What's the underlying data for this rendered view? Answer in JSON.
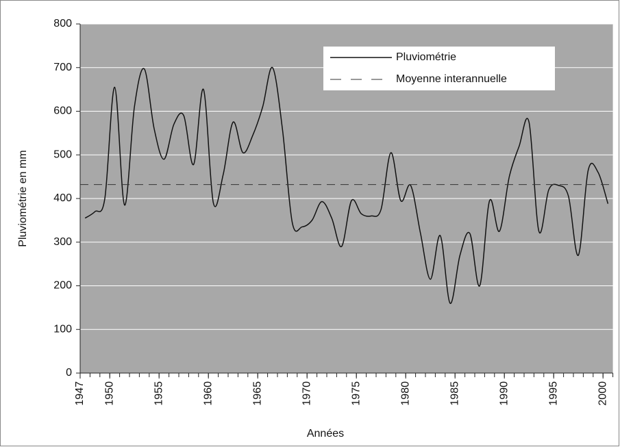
{
  "chart_data": {
    "type": "line",
    "x_label": "Années",
    "y_label": "Pluviométrie en mm",
    "xlim": [
      1947,
      2001
    ],
    "ylim": [
      0,
      800
    ],
    "xticks": [
      1947,
      1950,
      1955,
      1960,
      1965,
      1970,
      1975,
      1980,
      1985,
      1990,
      1995,
      2000
    ],
    "yticks": [
      0,
      100,
      200,
      300,
      400,
      500,
      600,
      700,
      800
    ],
    "grid": true,
    "background": "#a8a8a8",
    "x": [
      1947.5,
      1948.5,
      1949.5,
      1950.5,
      1951.5,
      1952.5,
      1953.5,
      1954.5,
      1955.5,
      1956.5,
      1957.5,
      1958.5,
      1959.5,
      1960.5,
      1961.5,
      1962.5,
      1963.5,
      1964.5,
      1965.5,
      1966.5,
      1967.5,
      1968.5,
      1969.5,
      1970.5,
      1971.5,
      1972.5,
      1973.5,
      1974.5,
      1975.5,
      1976.5,
      1977.5,
      1978.5,
      1979.5,
      1980.5,
      1981.5,
      1982.5,
      1983.5,
      1984.5,
      1985.5,
      1986.5,
      1987.5,
      1988.5,
      1989.5,
      1990.5,
      1991.5,
      1992.5,
      1993.5,
      1994.5,
      1995.5,
      1996.5,
      1997.5,
      1998.5,
      1999.5,
      2000.5
    ],
    "series": [
      {
        "name": "Pluviométrie",
        "color": "#111111",
        "values": [
          355,
          370,
          400,
          655,
          385,
          610,
          697,
          560,
          490,
          570,
          590,
          478,
          650,
          390,
          455,
          575,
          505,
          545,
          610,
          700,
          560,
          345,
          335,
          350,
          393,
          355,
          290,
          395,
          365,
          360,
          375,
          505,
          395,
          430,
          320,
          215,
          315,
          160,
          270,
          320,
          200,
          395,
          325,
          450,
          520,
          575,
          325,
          420,
          430,
          405,
          270,
          465,
          460,
          388
        ]
      },
      {
        "name": "Moyenne interannuelle",
        "color": "#333333",
        "dashed": true,
        "value": 432
      }
    ],
    "legend": "upper right"
  }
}
